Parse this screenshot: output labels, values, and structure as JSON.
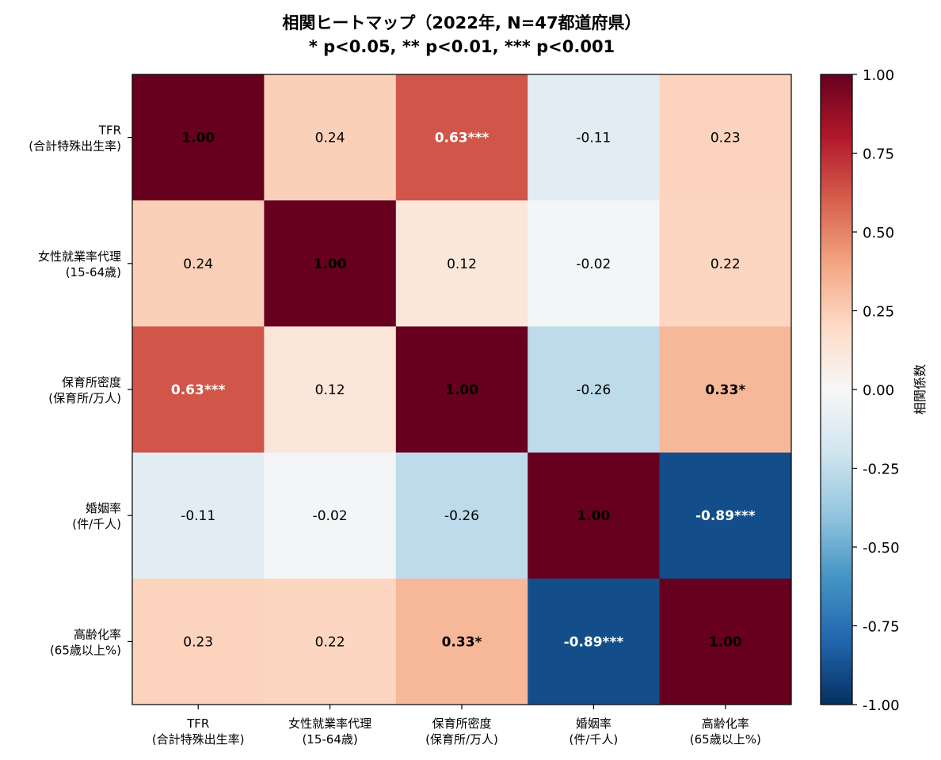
{
  "chart_data": {
    "type": "heatmap",
    "title": "相関ヒートマップ（2022年, N=47都道府県）",
    "subtitle": "* p<0.05, ** p<0.01, *** p<0.001",
    "row_labels": [
      [
        "TFR",
        "(合計特殊出生率)"
      ],
      [
        "女性就業率代理",
        "(15-64歳)"
      ],
      [
        "保育所密度",
        "(保育所/万人)"
      ],
      [
        "婚姻率",
        "(件/千人)"
      ],
      [
        "高齢化率",
        "(65歳以上%)"
      ]
    ],
    "col_labels": [
      [
        "TFR",
        "(合計特殊出生率)"
      ],
      [
        "女性就業率代理",
        "(15-64歳)"
      ],
      [
        "保育所密度",
        "(保育所/万人)"
      ],
      [
        "婚姻率",
        "(件/千人)"
      ],
      [
        "高齢化率",
        "(65歳以上%)"
      ]
    ],
    "values": [
      [
        1.0,
        0.24,
        0.63,
        -0.11,
        0.23
      ],
      [
        0.24,
        1.0,
        0.12,
        -0.02,
        0.22
      ],
      [
        0.63,
        0.12,
        1.0,
        -0.26,
        0.33
      ],
      [
        -0.11,
        -0.02,
        -0.26,
        1.0,
        -0.89
      ],
      [
        0.23,
        0.22,
        0.33,
        -0.89,
        1.0
      ]
    ],
    "cell_labels": [
      [
        "1.00",
        "0.24",
        "0.63***",
        "-0.11",
        "0.23"
      ],
      [
        "0.24",
        "1.00",
        "0.12",
        "-0.02",
        "0.22"
      ],
      [
        "0.63***",
        "0.12",
        "1.00",
        "-0.26",
        "0.33*"
      ],
      [
        "-0.11",
        "-0.02",
        "-0.26",
        "1.00",
        "-0.89***"
      ],
      [
        "0.23",
        "0.22",
        "0.33*",
        "-0.89***",
        "1.00"
      ]
    ],
    "colorbar": {
      "label": "相関係数",
      "range": [
        -1.0,
        1.0
      ],
      "ticks": [
        1.0,
        0.75,
        0.5,
        0.25,
        0.0,
        -0.25,
        -0.5,
        -0.75,
        -1.0
      ],
      "tick_labels": [
        "1.00",
        "0.75",
        "0.50",
        "0.25",
        "0.00",
        "-0.25",
        "-0.50",
        "-0.75",
        "-1.00"
      ],
      "colormap": "RdBu_r",
      "colormap_stops": [
        "#053061",
        "#2166ac",
        "#4393c3",
        "#92c5de",
        "#d1e5f0",
        "#f7f7f7",
        "#fddbc7",
        "#f4a582",
        "#d6604d",
        "#b2182b",
        "#67001f"
      ]
    }
  }
}
